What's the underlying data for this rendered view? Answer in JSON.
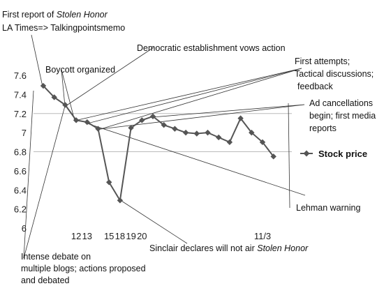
{
  "chart_data": {
    "type": "line",
    "ylim": [
      6,
      7.6
    ],
    "yticks": [
      "6",
      "6.2",
      "6.4",
      "6.6",
      "6.8",
      "7",
      "7.2",
      "7.4",
      "7.6"
    ],
    "gridlines_at": [
      6.8,
      7.2
    ],
    "xticks": [
      {
        "label": "12",
        "index": 3
      },
      {
        "label": "13",
        "index": 4
      },
      {
        "label": "15",
        "index": 6
      },
      {
        "label": "18",
        "index": 7
      },
      {
        "label": "19",
        "index": 8
      },
      {
        "label": "20",
        "index": 9
      },
      {
        "label": "11/3",
        "index": 20
      }
    ],
    "series": [
      {
        "name": "Stock price",
        "color": "#555555",
        "marker": "diamond",
        "values": [
          7.49,
          7.37,
          7.29,
          7.13,
          7.11,
          7.04,
          6.48,
          6.29,
          7.05,
          7.13,
          7.17,
          7.08,
          7.04,
          7.0,
          6.99,
          7.0,
          6.95,
          6.9,
          7.15,
          7.0,
          6.9,
          6.75
        ]
      }
    ],
    "legend": {
      "position": "right",
      "label": "Stock price"
    },
    "annotations": {
      "first_report": {
        "line1_prefix": "First report of ",
        "line1_italic": "Stolen Honor",
        "line2": "LA Times=> Talkingpointsmemo"
      },
      "dem_establishment": "Democratic establishment vows action",
      "boycott": "Boycott organized",
      "first_attempts": [
        "First attempts;",
        "Tactical discussions;",
        "feedback"
      ],
      "ad_cancellations": [
        "Ad cancellations",
        "begin; first media",
        "reports"
      ],
      "lehman": "Lehman warning",
      "sinclair": {
        "prefix": "Sinclair declares will not air ",
        "italic": "Stolen Honor"
      },
      "intense_debate": [
        "Intense debate on",
        "multiple blogs; actions proposed",
        "and debated"
      ]
    }
  }
}
